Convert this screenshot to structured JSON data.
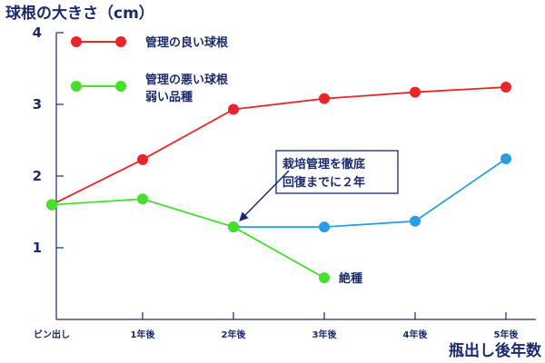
{
  "chart_data": {
    "type": "line",
    "title": "",
    "ylabel": "球根の大きさ（cm）",
    "xlabel": "瓶出し後年数",
    "ylim": [
      0,
      4
    ],
    "yticks": [
      1,
      2,
      3,
      4
    ],
    "categories": [
      "ビン出し",
      "1年後",
      "2年後",
      "3年後",
      "4年後",
      "5年後"
    ],
    "grid": false,
    "legend_position": "top-left",
    "series": [
      {
        "name": "管理の良い球根",
        "color": "#e8262a",
        "x": [
          "ビン出し",
          "1年後",
          "2年後",
          "3年後",
          "4年後",
          "5年後"
        ],
        "values": [
          1.6,
          2.23,
          2.93,
          3.08,
          3.17,
          3.24
        ]
      },
      {
        "name": "管理の悪い球根 弱い品種",
        "legend_lines": [
          "管理の悪い球根",
          "弱い品種"
        ],
        "color": "#44e02c",
        "x": [
          "ビン出し",
          "1年後",
          "2年後",
          "3年後"
        ],
        "values": [
          1.6,
          1.68,
          1.29,
          0.58
        ]
      },
      {
        "name": "",
        "color": "#2a9ee0",
        "x": [
          "2年後",
          "3年後",
          "4年後",
          "5年後"
        ],
        "values": [
          1.29,
          1.29,
          1.37,
          2.24
        ]
      }
    ],
    "annotations": [
      {
        "lines": [
          "栽培管理を徹底",
          "回復までに２年"
        ],
        "points_to": {
          "x": "2年後",
          "y": 1.29
        }
      },
      {
        "text": "絶種",
        "near": {
          "x": "3年後",
          "y": 0.58
        }
      }
    ]
  }
}
